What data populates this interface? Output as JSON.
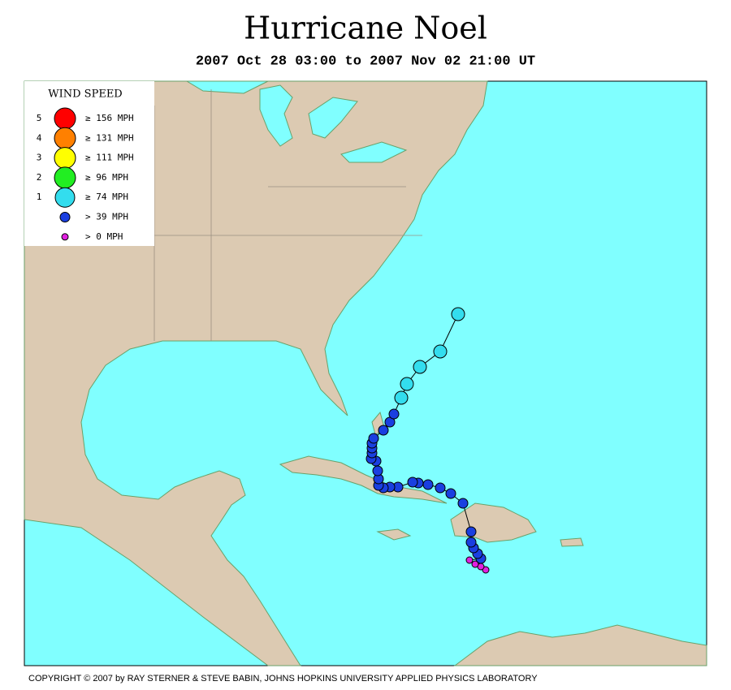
{
  "header": {
    "title": "Hurricane Noel",
    "subtitle": "2007 Oct 28 03:00 to 2007 Nov 02 21:00 UT"
  },
  "legend": {
    "title": "WIND SPEED",
    "items": [
      {
        "category": "5",
        "label": "≥ 156 MPH",
        "color": "#ff0000"
      },
      {
        "category": "4",
        "label": "≥ 131 MPH",
        "color": "#ff8000"
      },
      {
        "category": "3",
        "label": "≥ 111 MPH",
        "color": "#ffff00"
      },
      {
        "category": "2",
        "label": "≥ 96 MPH",
        "color": "#22ee22"
      },
      {
        "category": "1",
        "label": "≥ 74 MPH",
        "color": "#33ddee"
      },
      {
        "label": "> 39 MPH",
        "color": "#1a3fe0"
      },
      {
        "label": "> 0 MPH",
        "color": "#e020e0"
      }
    ]
  },
  "footer": {
    "copyright": "COPYRIGHT © 2007 by RAY STERNER & STEVE BABIN, JOHNS HOPKINS UNIVERSITY APPLIED PHYSICS LABORATORY"
  }
}
